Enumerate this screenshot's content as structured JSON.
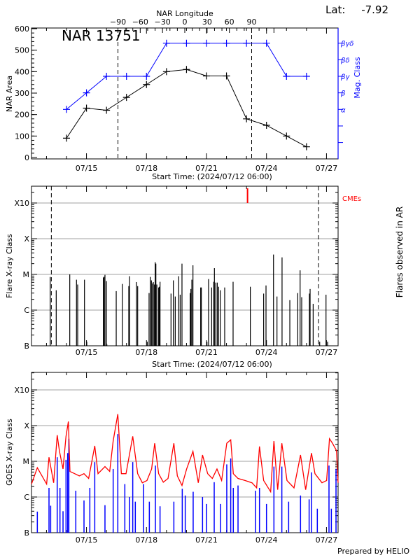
{
  "colors": {
    "axis": "#000000",
    "mag_class": "#0000ff",
    "cme": "#ff0000",
    "goes_long": "#ff0000",
    "goes_short": "#0000ff",
    "grid": "#a0a0a0"
  },
  "footer": "Prepared by HELIO",
  "chart_data": [
    {
      "type": "line",
      "panel": "nar",
      "title": "NAR 13751",
      "lat_label": "Lat:",
      "lat_value": "-7.92",
      "top_axis_label": "NAR Longitude",
      "top_ticks": [
        -90,
        -60,
        -30,
        0,
        30,
        60,
        90
      ],
      "xlabel": "Start Time: (2024/07/12 06:00)",
      "x_ticks": [
        "07/15",
        "07/18",
        "07/21",
        "07/24",
        "07/27"
      ],
      "ylabel": "NAR Area",
      "ylim": [
        0,
        600
      ],
      "y_ticks": [
        0,
        100,
        200,
        300,
        400,
        500,
        600
      ],
      "y2label": "Mag. Class",
      "y2_ticks": [
        "α",
        "β",
        "βγ",
        "βδ",
        "βγδ"
      ],
      "limb_longitudes": [
        -90,
        90
      ],
      "series": [
        {
          "name": "NAR Area",
          "x": [
            "07/14 00:00",
            "07/15 00:00",
            "07/16 00:00",
            "07/17 00:00",
            "07/18 00:00",
            "07/19 00:00",
            "07/20 00:00",
            "07/21 00:00",
            "07/22 00:00",
            "07/23 00:00",
            "07/24 00:00",
            "07/25 00:00",
            "07/26 00:00"
          ],
          "values": [
            90,
            230,
            220,
            280,
            340,
            400,
            410,
            380,
            380,
            180,
            150,
            100,
            50
          ]
        },
        {
          "name": "Mag. Class",
          "x": [
            "07/14 00:00",
            "07/15 00:00",
            "07/16 00:00",
            "07/17 00:00",
            "07/18 00:00",
            "07/19 00:00",
            "07/20 00:00",
            "07/21 00:00",
            "07/22 00:00",
            "07/23 00:00",
            "07/24 00:00",
            "07/25 00:00",
            "07/26 00:00"
          ],
          "values": [
            "α",
            "β",
            "βγ",
            "βγ",
            "βγ",
            "βγδ",
            "βγδ",
            "βγδ",
            "βγδ",
            "βγδ",
            "βγδ",
            "βγ",
            "βγ"
          ]
        }
      ]
    },
    {
      "type": "bar",
      "panel": "flares",
      "xlabel": "Start Time: (2024/07/12 06:00)",
      "x_ticks": [
        "07/15",
        "07/18",
        "07/21",
        "07/24",
        "07/27"
      ],
      "ylabel": "Flare X-ray Class",
      "y_ticks": [
        "B",
        "C",
        "M",
        "X",
        "X10"
      ],
      "y2label": "Flares observed in AR",
      "cme_label": "CMEs",
      "limb_times": [
        "07/13 05:50",
        "07/26 14:25"
      ],
      "cmes": [
        "07/23 01:15"
      ],
      "flares": [
        [
          "07/13 04:24",
          "C8.5"
        ],
        [
          "07/13 11:40",
          "C3.6"
        ],
        [
          "07/14 03:55",
          "M1.0"
        ],
        [
          "07/14 12:00",
          "C7.1"
        ],
        [
          "07/14 13:25",
          "C5.2"
        ],
        [
          "07/14 21:35",
          "C7.1"
        ],
        [
          "07/15 00:20",
          "B1.3"
        ],
        [
          "07/15 20:15",
          "C8.2"
        ],
        [
          "07/15 21:05",
          "C8.6"
        ],
        [
          "07/15 22:10",
          "C9.7"
        ],
        [
          "07/15 23:55",
          "C6.5"
        ],
        [
          "07/16 00:25",
          "B1.1"
        ],
        [
          "07/16 11:40",
          "C3.4"
        ],
        [
          "07/16 18:55",
          "C5.4"
        ],
        [
          "07/17 02:45",
          "C4.7"
        ],
        [
          "07/17 03:35",
          "C8.9"
        ],
        [
          "07/17 11:45",
          "C6.1"
        ],
        [
          "07/17 13:25",
          "C4.7"
        ],
        [
          "07/18 00:55",
          "B1.3"
        ],
        [
          "07/18 03:05",
          "C3.0"
        ],
        [
          "07/18 04:30",
          "C8.5"
        ],
        [
          "07/18 05:55",
          "C6.8"
        ],
        [
          "07/18 07:20",
          "C5.6"
        ],
        [
          "07/18 08:10",
          "C6.1"
        ],
        [
          "07/18 09:35",
          "C5.2"
        ],
        [
          "07/18 10:25",
          "M2.2"
        ],
        [
          "07/18 11:15",
          "M2.0"
        ],
        [
          "07/18 12:25",
          "C5.2"
        ],
        [
          "07/18 14:35",
          "C4.3"
        ],
        [
          "07/18 15:25",
          "C4.5"
        ],
        [
          "07/18 16:15",
          "C6.2"
        ],
        [
          "07/19 05:25",
          "C2.9"
        ],
        [
          "07/19 08:15",
          "C6.8"
        ],
        [
          "07/19 10:30",
          "C2.4"
        ],
        [
          "07/19 14:40",
          "C8.9"
        ],
        [
          "07/19 16:25",
          "C2.7"
        ],
        [
          "07/19 18:35",
          "M2.0"
        ],
        [
          "07/20 04:25",
          "C3.0"
        ],
        [
          "07/20 05:15",
          "C3.9"
        ],
        [
          "07/20 06:25",
          "C7.1"
        ],
        [
          "07/20 07:45",
          "M1.8"
        ],
        [
          "07/20 17:00",
          "C4.3"
        ],
        [
          "07/20 17:50",
          "C4.3"
        ],
        [
          "07/21 00:35",
          "B1.3"
        ],
        [
          "07/21 02:30",
          "C7.4"
        ],
        [
          "07/21 06:10",
          "C4.3"
        ],
        [
          "07/21 08:40",
          "C6.2"
        ],
        [
          "07/21 09:30",
          "M1.5"
        ],
        [
          "07/21 11:10",
          "C5.9"
        ],
        [
          "07/21 12:55",
          "C5.9"
        ],
        [
          "07/21 14:35",
          "C4.5"
        ],
        [
          "07/21 16:30",
          "C3.6"
        ],
        [
          "07/21 21:50",
          "C4.3"
        ],
        [
          "07/22 07:55",
          "C6.2"
        ],
        [
          "07/23 04:35",
          "C4.5"
        ],
        [
          "07/23 20:35",
          "C2.9"
        ],
        [
          "07/23 23:25",
          "C4.9"
        ],
        [
          "07/24 08:25",
          "M3.6"
        ],
        [
          "07/24 12:35",
          "C2.4"
        ],
        [
          "07/24 18:40",
          "M3.0"
        ],
        [
          "07/25 04:00",
          "C1.9"
        ],
        [
          "07/25 13:30",
          "C3.0"
        ],
        [
          "07/25 16:20",
          "M1.3"
        ],
        [
          "07/25 18:15",
          "C2.3"
        ],
        [
          "07/26 03:30",
          "C2.9"
        ],
        [
          "07/26 04:20",
          "C3.9"
        ],
        [
          "07/26 08:00",
          "C1.5"
        ],
        [
          "07/26 15:50",
          "B1.3"
        ],
        [
          "07/26 23:25",
          "C2.7"
        ],
        [
          "07/27 01:20",
          "B1.3"
        ]
      ]
    },
    {
      "type": "line",
      "panel": "goes",
      "ylabel": "GOES X-ray Class",
      "x_ticks": [
        "07/15",
        "07/18",
        "07/21",
        "07/24",
        "07/27"
      ],
      "y_ticks": [
        "B",
        "C",
        "M",
        "X",
        "X10"
      ],
      "series": [
        {
          "channel": "long",
          "points": [
            [
              "07/12 06:00",
              "C2.3"
            ],
            [
              "07/12 13:00",
              "C6.6"
            ],
            [
              "07/13 00:10",
              "C2.3"
            ],
            [
              "07/13 03:00",
              "M1.3"
            ],
            [
              "07/13 08:35",
              "C2.5"
            ],
            [
              "07/13 12:50",
              "M5.4"
            ],
            [
              "07/13 15:35",
              "M1.9"
            ],
            [
              "07/13 19:50",
              "C6.1"
            ],
            [
              "07/13 23:25",
              "M5.0"
            ],
            [
              "07/14 02:15",
              "X1.3"
            ],
            [
              "07/14 04:10",
              "C5.2"
            ],
            [
              "07/14 09:50",
              "C4.5"
            ],
            [
              "07/14 15:25",
              "C3.9"
            ],
            [
              "07/14 21:00",
              "C4.5"
            ],
            [
              "07/15 02:35",
              "C3.3"
            ],
            [
              "07/15 09:55",
              "M2.7"
            ],
            [
              "07/15 13:50",
              "C4.5"
            ],
            [
              "07/15 22:10",
              "C7.1"
            ],
            [
              "07/16 03:50",
              "C5.2"
            ],
            [
              "07/16 08:00",
              "M3.7"
            ],
            [
              "07/16 13:35",
              "X2.1"
            ],
            [
              "07/16 17:50",
              "C4.5"
            ],
            [
              "07/16 23:25",
              "C4.5"
            ],
            [
              "07/17 07:30",
              "M5.0"
            ],
            [
              "07/17 13:25",
              "C4.5"
            ],
            [
              "07/17 19:00",
              "C2.5"
            ],
            [
              "07/18 00:35",
              "C2.9"
            ],
            [
              "07/18 06:10",
              "C6.1"
            ],
            [
              "07/18 09:50",
              "M3.2"
            ],
            [
              "07/18 14:35",
              "C4.5"
            ],
            [
              "07/18 20:10",
              "C2.6"
            ],
            [
              "07/19 01:50",
              "C3.3"
            ],
            [
              "07/19 08:50",
              "M3.2"
            ],
            [
              "07/19 13:00",
              "C3.9"
            ],
            [
              "07/19 18:35",
              "C2.1"
            ],
            [
              "07/20 00:10",
              "C6.1"
            ],
            [
              "07/20 07:45",
              "M1.9"
            ],
            [
              "07/20 14:10",
              "C2.5"
            ],
            [
              "07/20 19:15",
              "M1.5"
            ],
            [
              "07/21 01:25",
              "C4.5"
            ],
            [
              "07/21 07:00",
              "C3.3"
            ],
            [
              "07/21 12:35",
              "C6.1"
            ],
            [
              "07/21 18:10",
              "C2.9"
            ],
            [
              "07/22 00:20",
              "M3.2"
            ],
            [
              "07/22 05:05",
              "M4.0"
            ],
            [
              "07/22 08:10",
              "C4.5"
            ],
            [
              "07/22 13:50",
              "C3.3"
            ],
            [
              "07/22 22:10",
              "C2.9"
            ],
            [
              "07/23 06:35",
              "C2.5"
            ],
            [
              "07/23 12:10",
              "C1.8"
            ],
            [
              "07/23 15:35",
              "M2.6"
            ],
            [
              "07/23 20:35",
              "C2.9"
            ],
            [
              "07/24 05:00",
              "C1.4"
            ],
            [
              "07/24 08:55",
              "M3.7"
            ],
            [
              "07/24 13:25",
              "C1.6"
            ],
            [
              "07/24 18:25",
              "M3.2"
            ],
            [
              "07/25 00:35",
              "C2.9"
            ],
            [
              "07/25 09:00",
              "C1.8"
            ],
            [
              "07/25 16:50",
              "M1.5"
            ],
            [
              "07/25 23:00",
              "C1.6"
            ],
            [
              "07/26 06:00",
              "M1.7"
            ],
            [
              "07/26 10:10",
              "C4.5"
            ],
            [
              "07/26 18:35",
              "C2.5"
            ],
            [
              "07/27 00:10",
              "C2.9"
            ],
            [
              "07/27 03:35",
              "M4.3"
            ],
            [
              "07/27 07:10",
              "M3.2"
            ],
            [
              "07/27 12:00",
              "M2.0"
            ],
            [
              "07/27 14:10",
              "C2.5"
            ]
          ]
        },
        {
          "channel": "short",
          "points": [
            [
              "07/12 13:00",
              "B3.9"
            ],
            [
              "07/13 03:00",
              "C1.8"
            ],
            [
              "07/13 05:00",
              "B5.7"
            ],
            [
              "07/13 12:50",
              "M1.3"
            ],
            [
              "07/13 16:10",
              "C1.8"
            ],
            [
              "07/13 19:50",
              "B4.0"
            ],
            [
              "07/13 23:25",
              "M1.1"
            ],
            [
              "07/14 01:25",
              "M1.7"
            ],
            [
              "07/14 02:50",
              "M4.3"
            ],
            [
              "07/14 11:10",
              "C1.5"
            ],
            [
              "07/14 21:00",
              "B8.0"
            ],
            [
              "07/15 04:00",
              "C1.8"
            ],
            [
              "07/15 09:55",
              "C9.5"
            ],
            [
              "07/15 22:10",
              "B5.9"
            ],
            [
              "07/16 08:00",
              "C6.1"
            ],
            [
              "07/16 13:35",
              "M5.8"
            ],
            [
              "07/16 22:00",
              "C2.3"
            ],
            [
              "07/17 03:35",
              "C1.0"
            ],
            [
              "07/17 07:30",
              "C9.5"
            ],
            [
              "07/17 10:35",
              "B7.4"
            ],
            [
              "07/17 20:25",
              "C2.3"
            ],
            [
              "07/18 03:25",
              "B7.4"
            ],
            [
              "07/18 10:40",
              "C7.6"
            ],
            [
              "07/18 16:15",
              "B5.5"
            ],
            [
              "07/19 08:50",
              "B7.4"
            ],
            [
              "07/19 18:55",
              "C1.7"
            ],
            [
              "07/19 22:30",
              "C1.1"
            ],
            [
              "07/20 08:00",
              "C1.4"
            ],
            [
              "07/20 19:15",
              "C1.0"
            ],
            [
              "07/21 00:00",
              "B6.4"
            ],
            [
              "07/21 09:15",
              "C2.6"
            ],
            [
              "07/21 16:50",
              "B6.4"
            ],
            [
              "07/22 00:20",
              "C8.2"
            ],
            [
              "07/22 05:05",
              "M1.2"
            ],
            [
              "07/22 08:10",
              "C1.8"
            ],
            [
              "07/22 13:50",
              "C2.1"
            ],
            [
              "07/23 10:50",
              "C1.5"
            ],
            [
              "07/23 15:35",
              "C1.8"
            ],
            [
              "07/24 00:00",
              "B6.4"
            ],
            [
              "07/24 08:55",
              "C7.1"
            ],
            [
              "07/24 18:25",
              "C7.1"
            ],
            [
              "07/25 02:35",
              "B7.4"
            ],
            [
              "07/25 16:50",
              "C1.1"
            ],
            [
              "07/26 03:10",
              "B8.6"
            ],
            [
              "07/26 06:00",
              "C4.9"
            ],
            [
              "07/26 13:00",
              "B4.7"
            ],
            [
              "07/27 03:00",
              "C7.6"
            ],
            [
              "07/27 05:50",
              "B4.7"
            ],
            [
              "07/27 11:25",
              "C6.1"
            ]
          ]
        }
      ]
    }
  ]
}
